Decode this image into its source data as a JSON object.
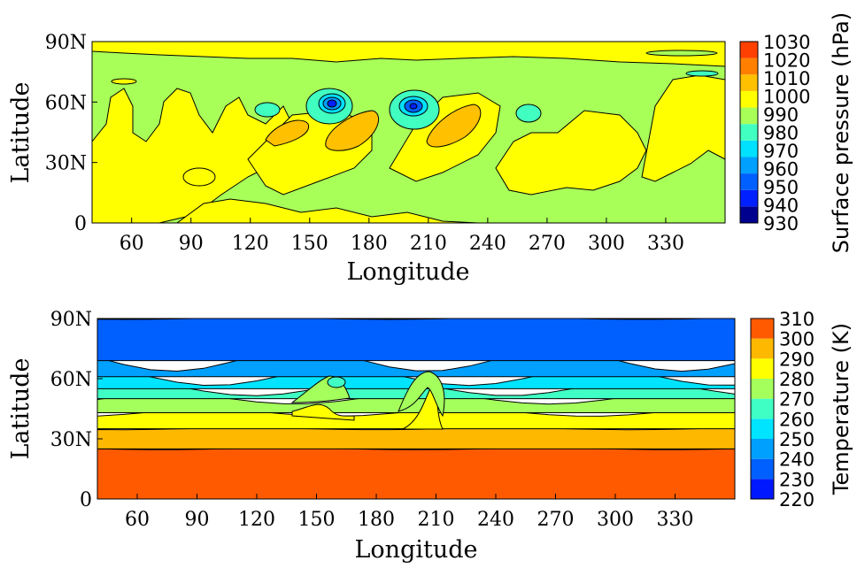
{
  "chart_data": [
    {
      "type": "contour",
      "xlabel": "Longitude",
      "ylabel": "Latitude",
      "xlim": [
        40,
        360
      ],
      "ylim": [
        0,
        90
      ],
      "xticks": [
        60,
        90,
        120,
        150,
        180,
        210,
        240,
        270,
        300,
        330
      ],
      "xtick_labels": [
        "60",
        "90",
        "120",
        "150",
        "180",
        "210",
        "240",
        "270",
        "300",
        "330"
      ],
      "yticks": [
        0,
        30,
        60,
        90
      ],
      "ytick_labels": [
        "0",
        "30N",
        "60N",
        "90N"
      ],
      "colorbar": {
        "label": "Surface pressure (hPa)",
        "levels": [
          930,
          940,
          950,
          960,
          970,
          980,
          990,
          1000,
          1010,
          1020,
          1030
        ],
        "labels": [
          "930",
          "940",
          "950",
          "960",
          "970",
          "980",
          "990",
          "1000",
          "1010",
          "1020",
          "1030"
        ],
        "colors": [
          "#00008f",
          "#0020ff",
          "#0060ff",
          "#00a0ff",
          "#00e0ff",
          "#40ffc0",
          "#a8ff58",
          "#ffff00",
          "#ffc000",
          "#ff8000",
          "#ff4000"
        ]
      },
      "features": {
        "background_level": 990,
        "lows": [
          {
            "lon": 165,
            "lat": 58,
            "min": 950
          },
          {
            "lon": 207,
            "lat": 58,
            "min": 960
          },
          {
            "lon": 135,
            "lat": 60,
            "min": 980
          },
          {
            "lon": 262,
            "lat": 58,
            "min": 980
          }
        ],
        "highs": [
          {
            "lon": 140,
            "lat": 45,
            "max": 1020
          },
          {
            "lon": 182,
            "lat": 42,
            "max": 1020
          },
          {
            "lon": 225,
            "lat": 45,
            "max": 1020
          }
        ]
      }
    },
    {
      "type": "contour",
      "xlabel": "Longitude",
      "ylabel": "Latitude",
      "xlim": [
        40,
        360
      ],
      "ylim": [
        0,
        90
      ],
      "xticks": [
        60,
        90,
        120,
        150,
        180,
        210,
        240,
        270,
        300,
        330
      ],
      "xtick_labels": [
        "60",
        "90",
        "120",
        "150",
        "180",
        "210",
        "240",
        "270",
        "300",
        "330"
      ],
      "yticks": [
        0,
        30,
        60,
        90
      ],
      "ytick_labels": [
        "0",
        "30N",
        "60N",
        "90N"
      ],
      "colorbar": {
        "label": "Temperature (K)",
        "levels": [
          220,
          230,
          240,
          250,
          260,
          270,
          280,
          290,
          300,
          310
        ],
        "labels": [
          "220",
          "230",
          "240",
          "250",
          "260",
          "270",
          "280",
          "290",
          "300",
          "310"
        ],
        "colors": [
          "#0018ff",
          "#0060ff",
          "#00a0ff",
          "#00e4ff",
          "#40ffc4",
          "#a4ff5c",
          "#ffff00",
          "#ffb800",
          "#ff5a00"
        ]
      },
      "bands": [
        {
          "range": [
            300,
            310
          ],
          "lat": [
            0,
            25
          ]
        },
        {
          "range": [
            290,
            300
          ],
          "lat": [
            25,
            35
          ]
        },
        {
          "range": [
            280,
            290
          ],
          "lat": [
            35,
            43
          ]
        },
        {
          "range": [
            270,
            280
          ],
          "lat": [
            43,
            50
          ]
        },
        {
          "range": [
            260,
            270
          ],
          "lat": [
            50,
            55
          ]
        },
        {
          "range": [
            250,
            260
          ],
          "lat": [
            55,
            61
          ]
        },
        {
          "range": [
            240,
            250
          ],
          "lat": [
            61,
            69
          ]
        },
        {
          "range": [
            230,
            240
          ],
          "lat": [
            69,
            90
          ]
        }
      ]
    }
  ]
}
